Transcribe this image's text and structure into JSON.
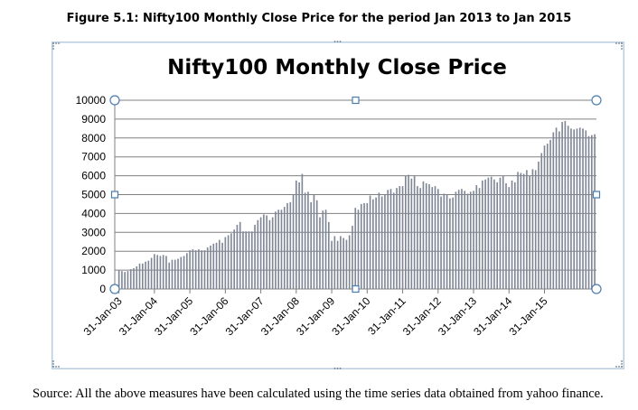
{
  "figure_caption": "Figure 5.1: Nifty100 Monthly Close Price for the period Jan 2013 to Jan 2015",
  "source_note": "Source: All the above measures have been calculated using the time series data obtained from yahoo finance.",
  "colors": {
    "bar": "#7f8796",
    "grid": "#808080",
    "axis": "#808080",
    "frame": "#b9cde0",
    "handle": "#4a7cb2"
  },
  "chart_data": {
    "type": "bar",
    "title": "Nifty100 Monthly  Close Price",
    "xlabel": "",
    "ylabel": "",
    "ylim": [
      0,
      10000
    ],
    "yticks": [
      0,
      1000,
      2000,
      3000,
      4000,
      5000,
      6000,
      7000,
      8000,
      9000,
      10000
    ],
    "xtick_labels": [
      "31-Jan-03",
      "31-Jan-04",
      "31-Jan-05",
      "31-Jan-06",
      "31-Jan-07",
      "31-Jan-08",
      "31-Jan-09",
      "31-Jan-10",
      "31-Jan-11",
      "31-Jan-12",
      "31-Jan-13",
      "31-Jan-14",
      "31-Jan-15"
    ],
    "grid": true,
    "legend": false,
    "bar_interval": "monthly",
    "values": [
      1000,
      950,
      900,
      950,
      1050,
      1100,
      1200,
      1350,
      1350,
      1450,
      1500,
      1650,
      1850,
      1800,
      1750,
      1800,
      1750,
      1400,
      1550,
      1550,
      1600,
      1700,
      1750,
      1900,
      2050,
      2100,
      2050,
      2100,
      2050,
      2050,
      2200,
      2300,
      2400,
      2450,
      2600,
      2450,
      2750,
      2850,
      2950,
      3150,
      3400,
      3550,
      3050,
      3050,
      3050,
      3050,
      3400,
      3650,
      3800,
      3950,
      3900,
      3650,
      3800,
      4100,
      4200,
      4200,
      4350,
      4550,
      4600,
      5000,
      5750,
      5650,
      6100,
      5100,
      5150,
      4600,
      5000,
      4700,
      3800,
      4150,
      4200,
      3550,
      2550,
      2800,
      2550,
      2800,
      2700,
      2600,
      2850,
      3350,
      4300,
      4200,
      4500,
      4550,
      4550,
      4950,
      4750,
      4850,
      5100,
      4900,
      5000,
      5250,
      5300,
      5100,
      5350,
      5450,
      5450,
      6000,
      6050,
      5850,
      6000,
      5450,
      5350,
      5700,
      5600,
      5550,
      5400,
      5450,
      5300,
      4900,
      5050,
      5000,
      4800,
      4850,
      5150,
      5250,
      5300,
      5200,
      5050,
      5150,
      5200,
      5500,
      5350,
      5750,
      5800,
      5900,
      5950,
      5800,
      5650,
      5900,
      6000,
      5600,
      5400,
      5750,
      5650,
      6200,
      6150,
      6100,
      6300,
      6000,
      6350,
      6300,
      6750,
      7200,
      7600,
      7700,
      7900,
      8300,
      8550,
      8350,
      8850,
      8900,
      8650,
      8500,
      8450,
      8500,
      8550,
      8500,
      8400,
      8100,
      8150,
      8200
    ]
  }
}
